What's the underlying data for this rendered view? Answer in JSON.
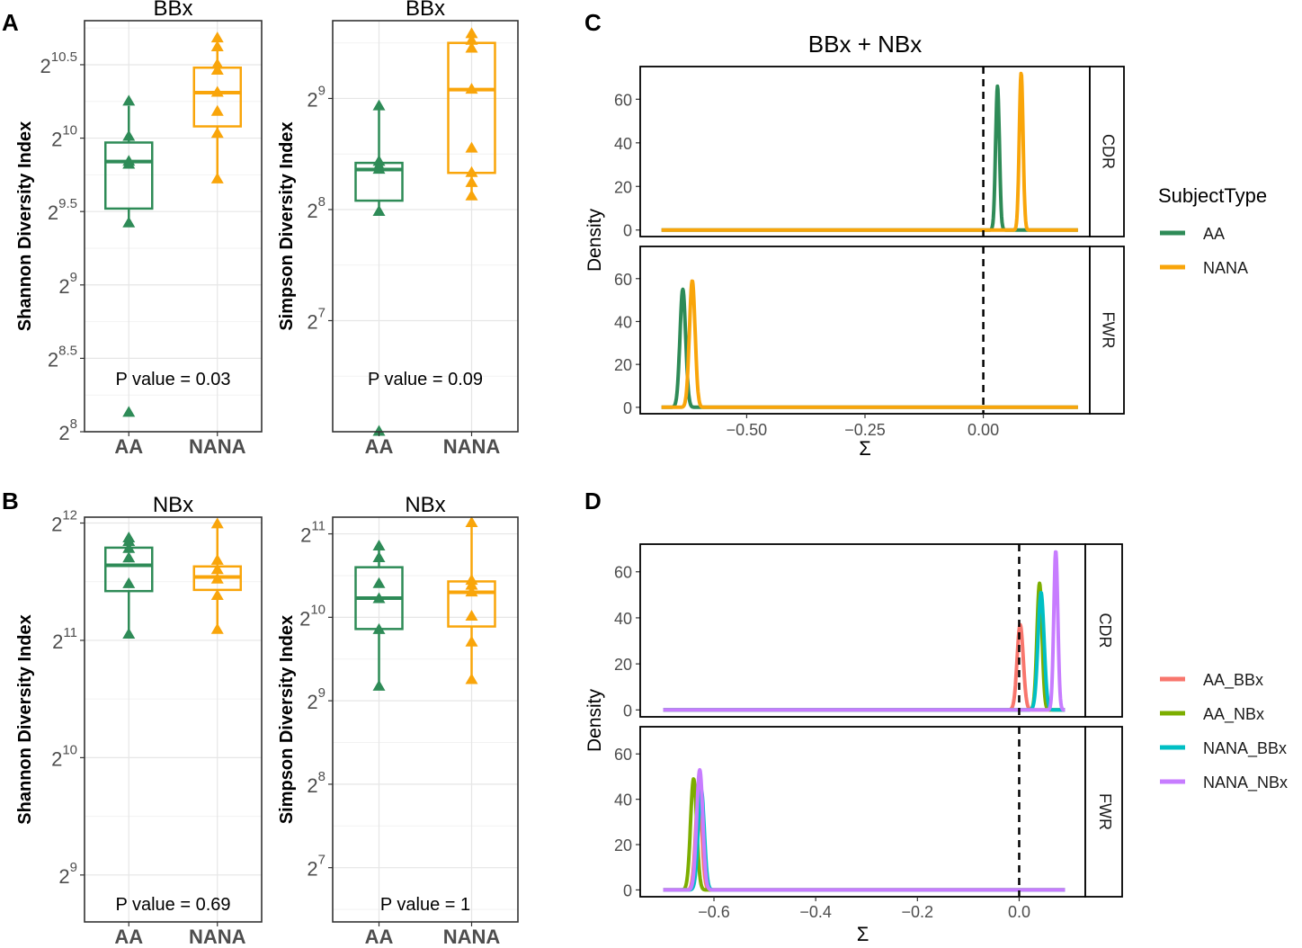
{
  "panel_labels": [
    "A",
    "B",
    "C",
    "D"
  ],
  "colors": {
    "AA": "#2e8b57",
    "NANA": "#f9a50a",
    "AA_BBx": "#f8766d",
    "AA_NBx": "#7cae00",
    "NANA_BBx": "#00bfc4",
    "NANA_NBx": "#c77cff"
  },
  "chart_data": [
    {
      "id": "A1",
      "type": "box",
      "title": "BBx",
      "xlabel": "",
      "ylabel": "Shannon Diversity Index",
      "categories": [
        "AA",
        "NANA"
      ],
      "yscale": "log2",
      "ylim_log2": [
        8,
        10.8
      ],
      "ticks": [
        {
          "v": 8,
          "base": "2",
          "exp": "8"
        },
        {
          "v": 8.5,
          "base": "2",
          "exp": "8.5"
        },
        {
          "v": 9,
          "base": "2",
          "exp": "9"
        },
        {
          "v": 9.5,
          "base": "2",
          "exp": "9.5"
        },
        {
          "v": 10,
          "base": "2",
          "exp": "10"
        },
        {
          "v": 10.5,
          "base": "2",
          "exp": "10.5"
        }
      ],
      "annotation": "P value = 0.03",
      "series": [
        {
          "name": "AA",
          "q1": 9.52,
          "median": 9.84,
          "q3": 9.97,
          "whisker_low": 9.42,
          "whisker_high": 10.22,
          "points": [
            10.25,
            10.01,
            9.84,
            9.82,
            9.42,
            8.13
          ]
        },
        {
          "name": "NANA",
          "q1": 10.08,
          "median": 10.31,
          "q3": 10.48,
          "whisker_low": 9.72,
          "whisker_high": 10.68,
          "points": [
            10.68,
            10.62,
            10.5,
            10.46,
            10.31,
            10.18,
            10.03,
            9.72
          ]
        }
      ]
    },
    {
      "id": "A2",
      "type": "box",
      "title": "BBx",
      "xlabel": "",
      "ylabel": "Simpson Diversity Index",
      "categories": [
        "AA",
        "NANA"
      ],
      "yscale": "log2",
      "ylim_log2": [
        6.0,
        9.7
      ],
      "ticks": [
        {
          "v": 7,
          "base": "2",
          "exp": "7"
        },
        {
          "v": 8,
          "base": "2",
          "exp": "8"
        },
        {
          "v": 9,
          "base": "2",
          "exp": "9"
        }
      ],
      "annotation": "P value = 0.09",
      "series": [
        {
          "name": "AA",
          "q1": 8.08,
          "median": 8.36,
          "q3": 8.42,
          "whisker_low": 7.98,
          "whisker_high": 8.93,
          "points": [
            8.93,
            8.43,
            8.39,
            8.36,
            7.98,
            6.0
          ]
        },
        {
          "name": "NANA",
          "q1": 8.33,
          "median": 9.08,
          "q3": 9.5,
          "whisker_low": 8.12,
          "whisker_high": 9.57,
          "points": [
            9.58,
            9.52,
            9.45,
            9.08,
            8.55,
            8.33,
            8.24,
            8.12
          ]
        }
      ]
    },
    {
      "id": "B1",
      "type": "box",
      "title": "NBx",
      "xlabel": "",
      "ylabel": "Shannon Diversity Index",
      "categories": [
        "AA",
        "NANA"
      ],
      "yscale": "log2",
      "ylim_log2": [
        8.6,
        12.05
      ],
      "ticks": [
        {
          "v": 9,
          "base": "2",
          "exp": "9"
        },
        {
          "v": 10,
          "base": "2",
          "exp": "10"
        },
        {
          "v": 11,
          "base": "2",
          "exp": "11"
        },
        {
          "v": 12,
          "base": "2",
          "exp": "12"
        }
      ],
      "annotation": "P value = 0.69",
      "series": [
        {
          "name": "AA",
          "q1": 11.42,
          "median": 11.64,
          "q3": 11.79,
          "whisker_low": 11.05,
          "whisker_high": 11.87,
          "points": [
            11.87,
            11.84,
            11.78,
            11.7,
            11.48,
            11.05
          ]
        },
        {
          "name": "NANA",
          "q1": 11.43,
          "median": 11.54,
          "q3": 11.63,
          "whisker_low": 11.09,
          "whisker_high": 11.99,
          "points": [
            11.99,
            11.68,
            11.6,
            11.52,
            11.38,
            11.09
          ]
        }
      ]
    },
    {
      "id": "B2",
      "type": "box",
      "title": "NBx",
      "xlabel": "",
      "ylabel": "Simpson Diversity Index",
      "categories": [
        "AA",
        "NANA"
      ],
      "yscale": "log2",
      "ylim_log2": [
        6.35,
        11.2
      ],
      "ticks": [
        {
          "v": 7,
          "base": "2",
          "exp": "7"
        },
        {
          "v": 8,
          "base": "2",
          "exp": "8"
        },
        {
          "v": 9,
          "base": "2",
          "exp": "9"
        },
        {
          "v": 10,
          "base": "2",
          "exp": "10"
        },
        {
          "v": 11,
          "base": "2",
          "exp": "11"
        }
      ],
      "annotation": "P value = 1",
      "series": [
        {
          "name": "AA",
          "q1": 9.86,
          "median": 10.23,
          "q3": 10.6,
          "whisker_low": 9.17,
          "whisker_high": 10.84,
          "points": [
            10.85,
            10.71,
            10.4,
            10.22,
            9.85,
            9.17
          ]
        },
        {
          "name": "NANA",
          "q1": 9.89,
          "median": 10.3,
          "q3": 10.43,
          "whisker_low": 9.25,
          "whisker_high": 11.12,
          "points": [
            11.13,
            10.44,
            10.38,
            10.3,
            10.01,
            9.7,
            9.25
          ]
        }
      ]
    },
    {
      "id": "C",
      "type": "line",
      "subtype": "density",
      "title": "BBx + NBx",
      "xlabel": "Σ",
      "ylabel": "Density",
      "xlim": [
        -0.725,
        0.225
      ],
      "ylim": [
        -3,
        75
      ],
      "xticks": [
        -0.5,
        -0.25,
        0.0
      ],
      "xtick_labels": [
        "−0.50",
        "−0.25",
        "0.00"
      ],
      "yticks": [
        0,
        20,
        40,
        60
      ],
      "ytick_labels": [
        "0",
        "20",
        "40",
        "60"
      ],
      "vline": 0.0,
      "legend_title": "SubjectType",
      "legend": [
        {
          "name": "AA",
          "color": "#2e8b57"
        },
        {
          "name": "NANA",
          "color": "#f9a50a"
        }
      ],
      "data_range": [
        -0.68,
        0.2
      ],
      "facets": [
        {
          "label": "CDR",
          "curves": [
            {
              "name": "AA",
              "peaks": [
                {
                  "mu": 0.03,
                  "h": 66,
                  "w": 0.004
                }
              ]
            },
            {
              "name": "NANA",
              "peaks": [
                {
                  "mu": 0.08,
                  "h": 72,
                  "w": 0.004
                }
              ]
            }
          ]
        },
        {
          "label": "FWR",
          "curves": [
            {
              "name": "AA",
              "peaks": [
                {
                  "mu": -0.635,
                  "h": 55,
                  "w": 0.006
                }
              ]
            },
            {
              "name": "NANA",
              "peaks": [
                {
                  "mu": -0.615,
                  "h": 59,
                  "w": 0.006
                }
              ]
            }
          ]
        }
      ]
    },
    {
      "id": "D",
      "type": "line",
      "subtype": "density",
      "title": "",
      "xlabel": "Σ",
      "ylabel": "Density",
      "xlim": [
        -0.745,
        0.13
      ],
      "ylim": [
        -3,
        72
      ],
      "xticks": [
        -0.6,
        -0.4,
        -0.2,
        0.0
      ],
      "xtick_labels": [
        "−0.6",
        "−0.4",
        "−0.2",
        "0.0"
      ],
      "yticks": [
        0,
        20,
        40,
        60
      ],
      "ytick_labels": [
        "0",
        "20",
        "40",
        "60"
      ],
      "vline": 0.0,
      "legend_title": "",
      "legend": [
        {
          "name": "AA_BBx",
          "color": "#f8766d"
        },
        {
          "name": "AA_NBx",
          "color": "#7cae00"
        },
        {
          "name": "NANA_BBx",
          "color": "#00bfc4"
        },
        {
          "name": "NANA_NBx",
          "color": "#c77cff"
        }
      ],
      "data_range": [
        -0.7,
        0.09
      ],
      "facets": [
        {
          "label": "CDR",
          "curves": [
            {
              "name": "AA_BBx",
              "peaks": [
                {
                  "mu": 0.002,
                  "h": 37,
                  "w": 0.006
                }
              ]
            },
            {
              "name": "AA_NBx",
              "peaks": [
                {
                  "mu": 0.04,
                  "h": 55,
                  "w": 0.005
                }
              ]
            },
            {
              "name": "NANA_BBx",
              "peaks": [
                {
                  "mu": 0.043,
                  "h": 51,
                  "w": 0.006
                }
              ]
            },
            {
              "name": "NANA_NBx",
              "peaks": [
                {
                  "mu": 0.072,
                  "h": 69,
                  "w": 0.004
                }
              ]
            }
          ]
        },
        {
          "label": "FWR",
          "curves": [
            {
              "name": "AA_BBx",
              "peaks": [
                {
                  "mu": -0.63,
                  "h": 44,
                  "w": 0.006
                }
              ]
            },
            {
              "name": "AA_NBx",
              "peaks": [
                {
                  "mu": -0.64,
                  "h": 49,
                  "w": 0.006
                }
              ]
            },
            {
              "name": "NANA_BBx",
              "peaks": [
                {
                  "mu": -0.625,
                  "h": 44,
                  "w": 0.006
                }
              ]
            },
            {
              "name": "NANA_NBx",
              "peaks": [
                {
                  "mu": -0.628,
                  "h": 53,
                  "w": 0.006
                }
              ]
            }
          ]
        }
      ]
    }
  ]
}
